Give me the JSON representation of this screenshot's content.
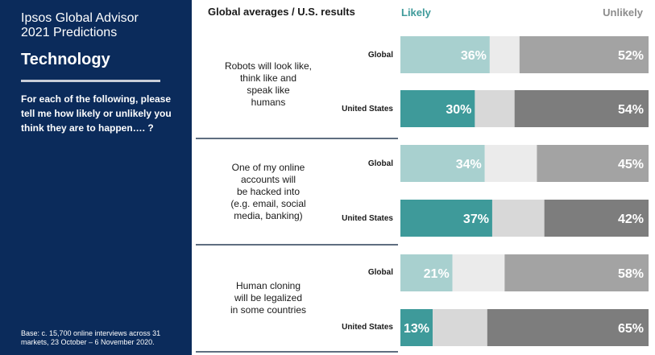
{
  "sidebar": {
    "brand_line1": "Ipsos Global Advisor",
    "brand_line2": "2021 Predictions",
    "topic": "Technology",
    "question": "For each of the following, please tell me how likely or unlikely you think they are to happen…. ?",
    "base_note": "Base: c. 15,700 online interviews across 31 markets,  23 October – 6 November 2020."
  },
  "header": {
    "label": "Global averages / U.S. results",
    "likely": "Likely",
    "unlikely": "Unlikely"
  },
  "colors": {
    "sidebar_bg": "#0b2b5b",
    "global_likely": "#a8d0cf",
    "us_likely": "#3e9a9a",
    "global_middle": "#ebebeb",
    "us_middle": "#d8d8d8",
    "global_unlikely": "#a3a3a3",
    "us_unlikely": "#7d7d7d"
  },
  "chart_data": {
    "type": "bar",
    "orientation": "horizontal-stacked",
    "groups": [
      {
        "topic": [
          "Robots will look like,",
          "think like and",
          "speak like",
          "humans"
        ],
        "rows": [
          {
            "label": "Global",
            "likely": 36,
            "unlikely": 52
          },
          {
            "label": "United States",
            "likely": 30,
            "unlikely": 54
          }
        ]
      },
      {
        "topic": [
          "One of my online",
          "accounts will",
          "be hacked into",
          "(e.g. email, social",
          "media, banking)"
        ],
        "rows": [
          {
            "label": "Global",
            "likely": 34,
            "unlikely": 45
          },
          {
            "label": "United States",
            "likely": 37,
            "unlikely": 42
          }
        ]
      },
      {
        "topic": [
          "Human cloning",
          "will be legalized",
          "in some countries"
        ],
        "rows": [
          {
            "label": "Global",
            "likely": 21,
            "unlikely": 58
          },
          {
            "label": "United States",
            "likely": 13,
            "unlikely": 65
          }
        ]
      }
    ]
  }
}
